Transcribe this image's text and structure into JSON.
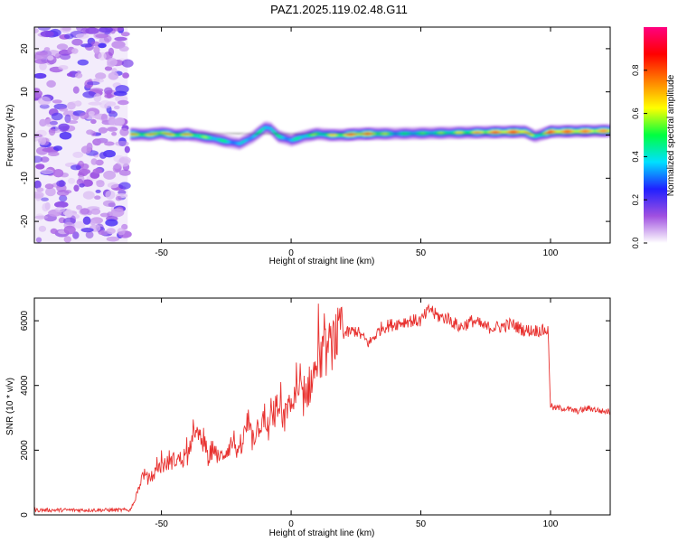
{
  "title": "PAZ1.2025.119.02.48.G11",
  "chart_data": [
    {
      "type": "heatmap",
      "xlabel": "Height of straight line (km)",
      "ylabel": "Frequency (Hz)",
      "xlim": [
        -99,
        123
      ],
      "ylim": [
        -25,
        25
      ],
      "xticks": [
        -50,
        0,
        50,
        100
      ],
      "yticks": [
        -20,
        -10,
        0,
        10,
        20
      ],
      "colorbar": {
        "label": "Normalized spectral amplitude",
        "range": [
          0,
          1
        ],
        "ticks": [
          0.0,
          0.2,
          0.4,
          0.6,
          0.8
        ],
        "colors": [
          "#ffffff",
          "#a050e0",
          "#2020ff",
          "#00e0ff",
          "#00ff40",
          "#ffff00",
          "#ff8000",
          "#ff0000",
          "#ff0080"
        ]
      },
      "noise_region_x": [
        -99,
        -63
      ],
      "signal_track": {
        "x": [
          -62,
          -55,
          -50,
          -45,
          -40,
          -35,
          -30,
          -25,
          -20,
          -15,
          -10,
          -8,
          -5,
          0,
          5,
          10,
          15,
          20,
          25,
          30,
          40,
          50,
          60,
          70,
          80,
          90,
          94,
          100,
          110,
          123
        ],
        "freq": [
          0.2,
          0.1,
          0.5,
          0.0,
          0.2,
          -0.3,
          -0.8,
          -1.5,
          -2.0,
          -0.5,
          1.8,
          1.5,
          -0.3,
          -1.2,
          -0.3,
          0.3,
          0.0,
          0.0,
          0.2,
          0.3,
          0.3,
          0.4,
          0.5,
          0.6,
          0.7,
          0.8,
          -0.3,
          0.8,
          0.9,
          1.0
        ],
        "amplitude": [
          0.75,
          0.7,
          0.8,
          0.7,
          0.75,
          0.6,
          0.55,
          0.5,
          0.4,
          0.5,
          0.5,
          0.55,
          0.5,
          0.45,
          0.55,
          0.6,
          0.65,
          0.75,
          0.9,
          0.85,
          0.5,
          0.55,
          0.6,
          0.7,
          0.85,
          0.9,
          0.5,
          0.9,
          0.85,
          0.8
        ]
      }
    },
    {
      "type": "line",
      "xlabel": "Height of straight line (km)",
      "ylabel": "SNR (10 * v/v)",
      "xlim": [
        -99,
        123
      ],
      "ylim": [
        0,
        6700
      ],
      "xticks": [
        -50,
        0,
        50,
        100
      ],
      "yticks": [
        0,
        2000,
        4000,
        6000
      ],
      "color": "#e8312f",
      "x": [
        -99,
        -80,
        -65,
        -62,
        -60,
        -57,
        -55,
        -50,
        -45,
        -40,
        -38,
        -35,
        -32,
        -30,
        -28,
        -25,
        -22,
        -20,
        -17,
        -15,
        -12,
        -10,
        -7,
        -5,
        -3,
        0,
        3,
        5,
        8,
        10,
        12,
        15,
        17,
        20,
        25,
        30,
        35,
        40,
        45,
        50,
        52,
        54,
        55,
        58,
        60,
        65,
        70,
        75,
        80,
        85,
        90,
        95,
        97,
        98,
        99,
        100,
        101,
        105,
        110,
        115,
        120,
        123
      ],
      "y": [
        150,
        150,
        150,
        150,
        500,
        1300,
        1100,
        1500,
        1700,
        1750,
        2600,
        2300,
        1800,
        2100,
        1700,
        2000,
        2300,
        1800,
        2800,
        2300,
        2900,
        2500,
        3000,
        3300,
        2900,
        3400,
        3700,
        3600,
        4200,
        4600,
        4900,
        5200,
        5500,
        5600,
        5700,
        5300,
        5800,
        5900,
        6000,
        6000,
        6200,
        6400,
        6200,
        6100,
        6100,
        5800,
        6000,
        5800,
        5800,
        5900,
        5700,
        5700,
        5700,
        5700,
        5700,
        3400,
        3300,
        3300,
        3200,
        3300,
        3200,
        3200
      ]
    }
  ]
}
